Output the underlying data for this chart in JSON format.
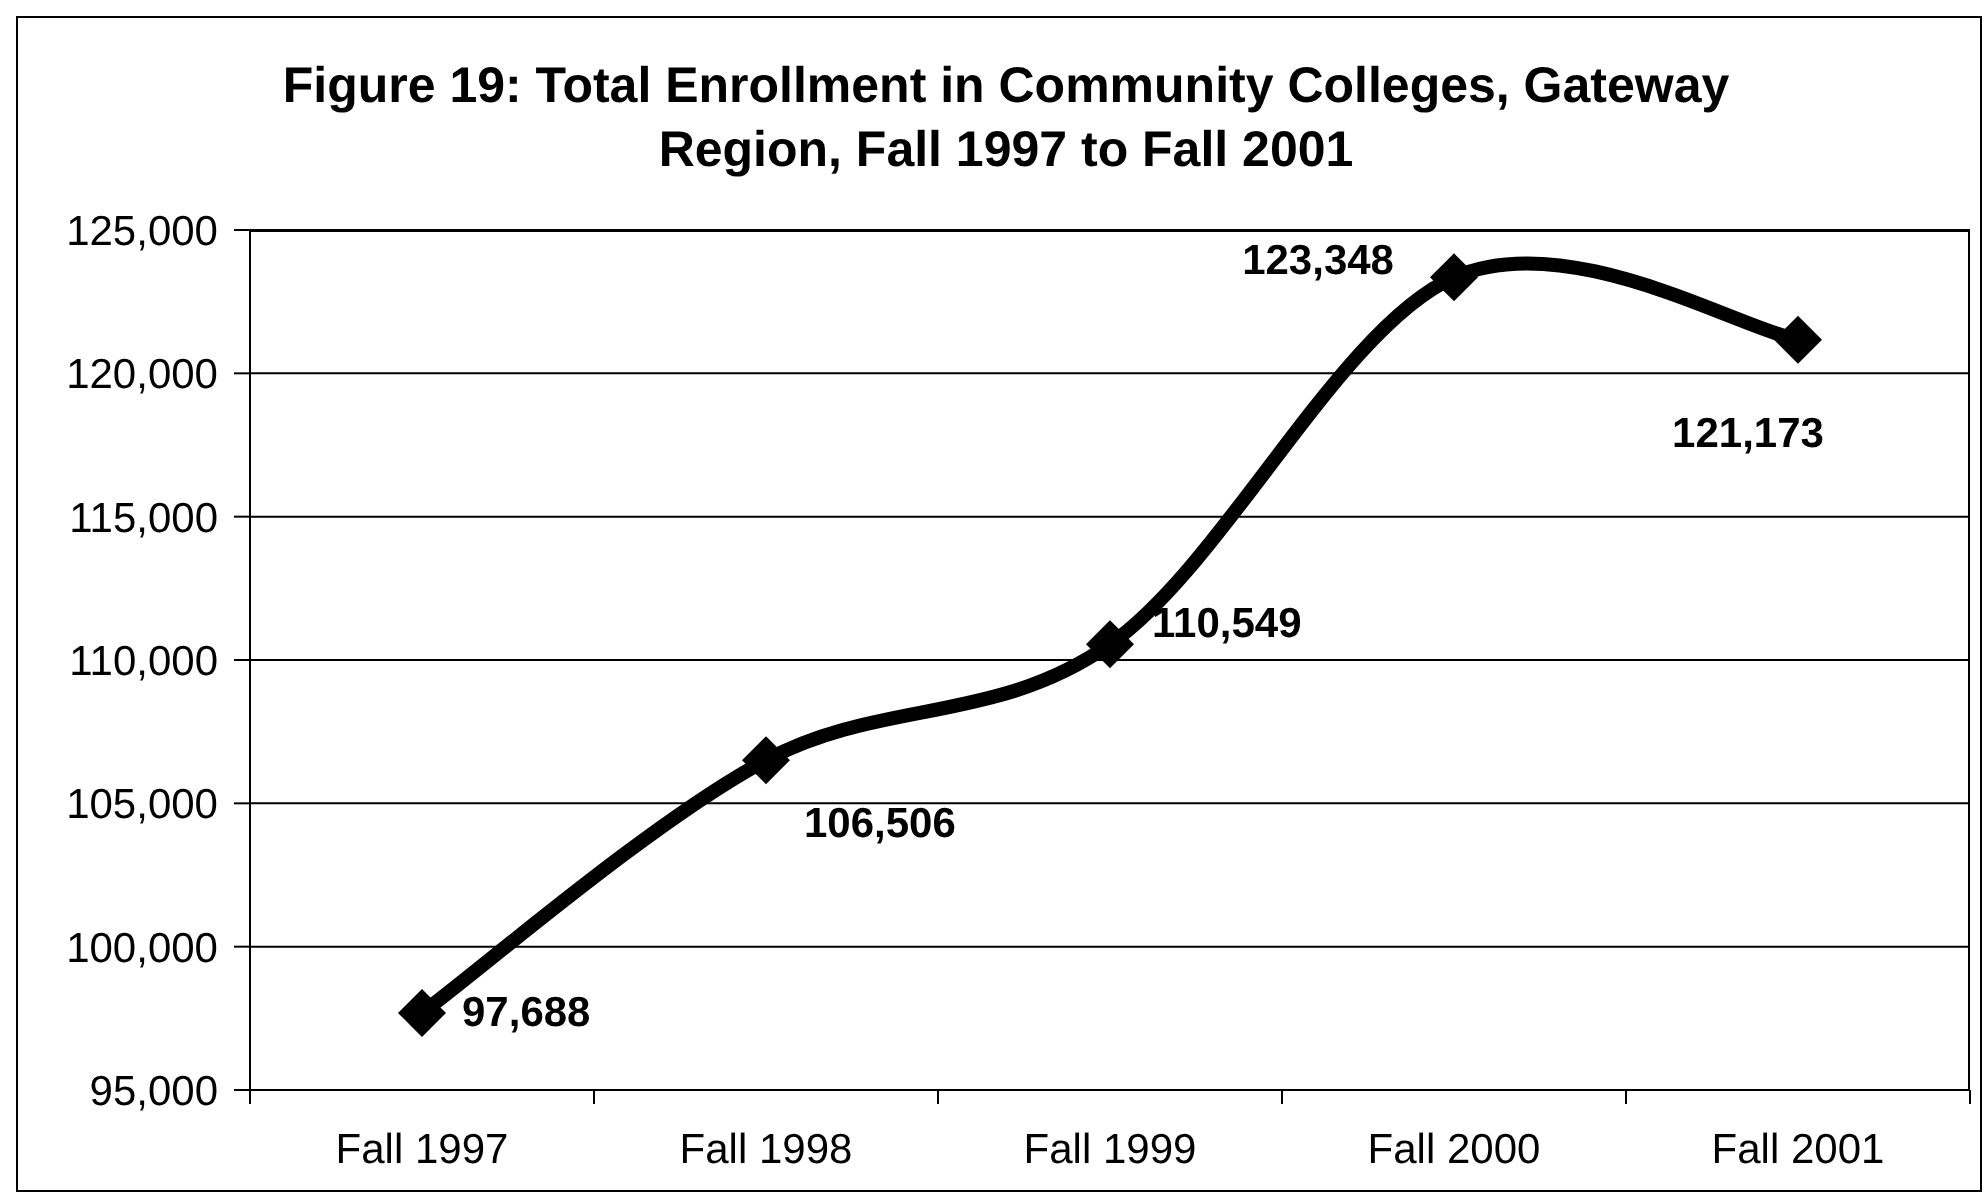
{
  "chart_data": {
    "type": "line",
    "title": "Figure 19: Total Enrollment in Community Colleges, Gateway Region, Fall 1997 to Fall 2001",
    "categories": [
      "Fall 1997",
      "Fall 1998",
      "Fall 1999",
      "Fall 2000",
      "Fall 2001"
    ],
    "values": [
      97688,
      106506,
      110549,
      123348,
      121173
    ],
    "value_labels": [
      "97,688",
      "106,506",
      "110,549",
      "123,348",
      "121,173"
    ],
    "color": "#000000",
    "ylim": [
      95000,
      125000
    ],
    "yticks": [
      {
        "value": 95000,
        "label": "95,000"
      },
      {
        "value": 100000,
        "label": "100,000"
      },
      {
        "value": 105000,
        "label": "105,000"
      },
      {
        "value": 110000,
        "label": "110,000"
      },
      {
        "value": 115000,
        "label": "115,000"
      },
      {
        "value": 120000,
        "label": "120,000"
      },
      {
        "value": 125000,
        "label": "125,000"
      }
    ],
    "grid": "y",
    "marker": "diamond"
  }
}
